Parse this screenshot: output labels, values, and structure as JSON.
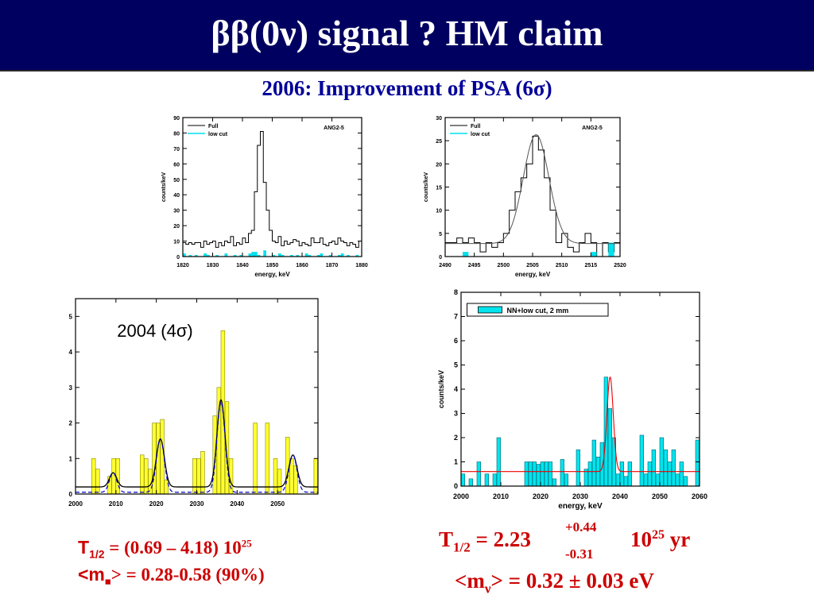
{
  "slide": {
    "title": "ββ(0ν) signal ?  HM claim",
    "subtitle": "2006: Improvement of PSA (6σ)"
  },
  "chart_data": [
    {
      "id": "p1",
      "type": "line",
      "xlabel": "energy, keV",
      "ylabel": "counts/keV",
      "xlim": [
        1820,
        1880
      ],
      "ylim": [
        0,
        90
      ],
      "xticks": [
        1820,
        1830,
        1840,
        1850,
        1860,
        1870,
        1880
      ],
      "xtick_labels": [
        "1820",
        "1830",
        "1840",
        "1850",
        "1860",
        "1870",
        "1880"
      ],
      "yticks": [
        0,
        10,
        20,
        30,
        40,
        50,
        60,
        70,
        80,
        90
      ],
      "annotation": "ANG2-5",
      "legend": [
        "Full",
        "low cut"
      ],
      "series": [
        {
          "name": "Full",
          "x0": 1820,
          "step": 1,
          "values": [
            9,
            8,
            9,
            8,
            9,
            9,
            6,
            10,
            8,
            9,
            10,
            6,
            9,
            7,
            10,
            9,
            13,
            7,
            9,
            8,
            12,
            9,
            15,
            17,
            42,
            72,
            81,
            48,
            30,
            17,
            10,
            9,
            13,
            7,
            10,
            8,
            9,
            11,
            10,
            7,
            9,
            8,
            7,
            12,
            9,
            9,
            12,
            8,
            7,
            9,
            10,
            8,
            12,
            10,
            9,
            7,
            9,
            8,
            6,
            10
          ]
        },
        {
          "name": "low cut",
          "x0": 1820,
          "step": 1,
          "values": [
            2,
            0,
            1,
            0,
            1,
            0,
            0,
            2,
            1,
            0,
            0,
            1,
            0,
            0,
            2,
            0,
            0,
            1,
            0,
            1,
            0,
            0,
            2,
            3,
            3,
            1,
            0,
            4,
            0,
            0,
            1,
            0,
            2,
            1,
            0,
            0,
            1,
            0,
            1,
            0,
            0,
            2,
            1,
            0,
            0,
            1,
            2,
            0,
            0,
            1,
            0,
            0,
            1,
            2,
            0,
            1,
            0,
            0,
            1,
            0
          ]
        }
      ]
    },
    {
      "id": "p2",
      "type": "line",
      "xlabel": "energy, keV",
      "ylabel": "counts/keV",
      "xlim": [
        2490,
        2520
      ],
      "ylim": [
        0,
        30
      ],
      "xticks": [
        2490,
        2495,
        2500,
        2505,
        2510,
        2515,
        2520
      ],
      "xtick_labels": [
        "2490",
        "2495",
        "2500",
        "2505",
        "2510",
        "2515",
        "2520"
      ],
      "yticks": [
        0,
        5,
        10,
        15,
        20,
        25,
        30
      ],
      "annotation": "ANG2-5",
      "legend": [
        "Full",
        "low cut"
      ],
      "series": [
        {
          "name": "Full",
          "x0": 2490,
          "step": 1,
          "values": [
            3,
            3,
            4,
            3,
            4,
            3,
            1,
            3,
            2,
            3,
            5,
            10,
            14,
            17,
            20,
            26,
            23,
            17,
            10,
            3,
            5,
            2,
            1,
            3,
            5,
            3,
            0,
            3,
            1,
            3
          ]
        },
        {
          "name": "low cut",
          "x0": 2490,
          "step": 1,
          "values": [
            0,
            0,
            0,
            1,
            0,
            0,
            0,
            0,
            0,
            0,
            0,
            0,
            0,
            0,
            0,
            0,
            0,
            0,
            0,
            0,
            0,
            0,
            0,
            0,
            0,
            1,
            0,
            0,
            3,
            0
          ]
        }
      ]
    },
    {
      "id": "p3",
      "type": "bar",
      "xlabel": "Energy, keV",
      "ylabel": "Counts/keV",
      "xlim": [
        2000,
        2060
      ],
      "ylim": [
        0,
        5.5
      ],
      "xticks": [
        2000,
        2010,
        2020,
        2030,
        2040,
        2050
      ],
      "xtick_labels": [
        "2000",
        "2010",
        "2020",
        "2030",
        "2040",
        "2050"
      ],
      "yticks": [
        0,
        1,
        2,
        3,
        4,
        5
      ],
      "annotation": "2004 (4σ)",
      "bars": {
        "width": 1,
        "x": [
          2004,
          2005,
          2008,
          2009,
          2010,
          2016,
          2017,
          2018,
          2019,
          2020,
          2021,
          2022,
          2029,
          2030,
          2031,
          2034,
          2035,
          2036,
          2037,
          2038,
          2044,
          2047,
          2049,
          2050,
          2052,
          2053,
          2054,
          2059
        ],
        "values": [
          1,
          0.7,
          0.5,
          1,
          1,
          1.1,
          1,
          0.7,
          2,
          2,
          2.1,
          0.4,
          1,
          1,
          1.2,
          2.2,
          3,
          4.6,
          2.6,
          1,
          2,
          2,
          1,
          0.7,
          1.6,
          1,
          0.8,
          1
        ]
      },
      "series": [
        {
          "name": "fit",
          "type": "gauss",
          "baseline": 0.2,
          "peaks": [
            [
              2009.3,
              0.4,
              0.9
            ],
            [
              2021,
              1.35,
              1.0
            ],
            [
              2036,
              2.45,
              1.0
            ],
            [
              2053.8,
              0.9,
              1.0
            ]
          ]
        },
        {
          "name": "fit-dashed",
          "type": "gauss",
          "baseline": 0.05,
          "peaks": [
            [
              2009.3,
              0.55,
              0.9
            ],
            [
              2021,
              1.5,
              1.0
            ],
            [
              2036,
              2.55,
              1.0
            ],
            [
              2053.8,
              1.05,
              1.0
            ]
          ]
        }
      ]
    },
    {
      "id": "p4",
      "type": "bar",
      "xlabel": "energy, keV",
      "ylabel": "counts/keV",
      "xlim": [
        2000,
        2060
      ],
      "ylim": [
        0,
        8
      ],
      "xticks": [
        2000,
        2010,
        2020,
        2030,
        2040,
        2050,
        2060
      ],
      "xtick_labels": [
        "2000",
        "2010",
        "2020",
        "2030",
        "2040",
        "2050",
        "2060"
      ],
      "yticks": [
        0,
        1,
        2,
        3,
        4,
        5,
        6,
        7,
        8
      ],
      "legend": [
        "NN+low cut, 2 mm"
      ],
      "bars": {
        "width": 1,
        "x": [
          2000,
          2002,
          2004,
          2006,
          2008,
          2009,
          2016,
          2017,
          2018,
          2019,
          2020,
          2021,
          2022,
          2023,
          2025,
          2026,
          2029,
          2031,
          2032,
          2033,
          2034,
          2035,
          2036,
          2037,
          2038,
          2039,
          2040,
          2041,
          2042,
          2045,
          2046,
          2047,
          2048,
          2049,
          2050,
          2051,
          2052,
          2053,
          2054,
          2055,
          2056,
          2059
        ],
        "values": [
          0.5,
          0.3,
          1,
          0.5,
          0.5,
          2,
          1,
          1,
          1,
          0.9,
          1,
          1,
          1,
          0.3,
          1.1,
          0.5,
          1.5,
          0.7,
          1,
          1.9,
          1.2,
          1.8,
          4.5,
          3.2,
          2,
          0.5,
          1,
          0.4,
          1,
          2.1,
          0.5,
          1,
          1.5,
          0.5,
          2,
          1.5,
          1,
          1.5,
          0.5,
          1,
          0.4,
          1.9
        ]
      },
      "series": [
        {
          "name": "fit",
          "type": "gauss",
          "baseline": 0.6,
          "peaks": [
            [
              2037.5,
              3.9,
              0.8
            ]
          ]
        }
      ]
    }
  ],
  "results_2004": {
    "t_main": "T",
    "t_sub": "1/2",
    "t_value": " = (0.69 – 4.18)  10",
    "t_exp": "25",
    "m_open": "<m",
    "m_sub": "■",
    "m_value": "> = 0.28-0.58 (90%)"
  },
  "results_2006": {
    "t_main": "T",
    "t_sub": "1/2",
    "t_eq": " =  2.23",
    "err_plus": "+0.44",
    "err_minus": "-0.31",
    "ten": "10",
    "t_exp": "25",
    "t_unit": " yr",
    "m_open": "<m",
    "m_sub": "ν",
    "m_value": "> = 0.32 ±  0.03 eV"
  }
}
